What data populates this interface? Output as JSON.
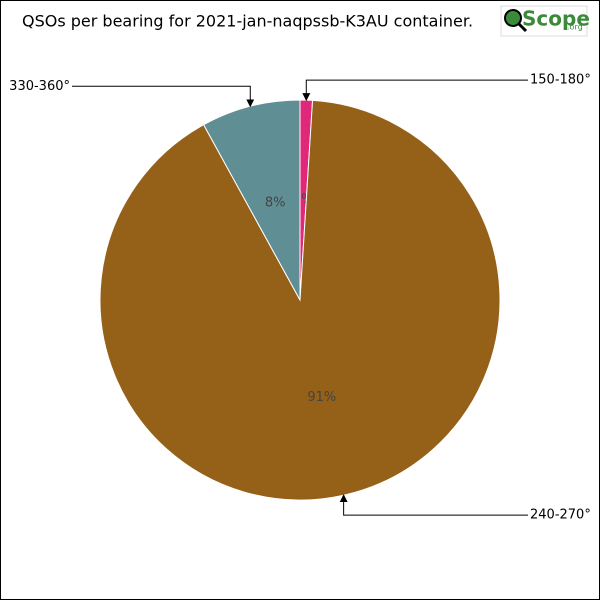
{
  "chart_data": {
    "type": "pie",
    "title": "QSOs per bearing for 2021-jan-naqpssb-K3AU container.",
    "logo": {
      "text": "Scope",
      "suffix": ".org"
    },
    "categories": [
      "150-180°",
      "240-270°",
      "330-360°"
    ],
    "values": [
      1,
      91,
      8
    ],
    "value_labels": [
      "1%",
      "91%",
      "8%"
    ],
    "colors": [
      "#e0287a",
      "#956018",
      "#5f8f95"
    ]
  }
}
